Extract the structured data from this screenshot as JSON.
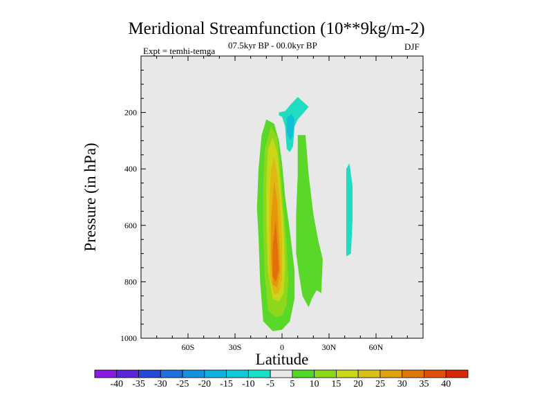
{
  "chart_data": {
    "type": "filled-contour",
    "title": "Meridional Streamfunction (10**9kg/m-2)",
    "subtitle_left": "Expt = temhi-temga",
    "subtitle_center": "07.5kyr BP - 00.0kyr BP",
    "subtitle_right": "DJF",
    "xlabel": "Latitude",
    "ylabel": "Pressure (in hPa)",
    "xlim": [
      -90,
      90
    ],
    "ylim": [
      1000,
      0
    ],
    "x_ticks": [
      -60,
      -30,
      0,
      30,
      60
    ],
    "x_tick_labels": [
      "60S",
      "30S",
      "0",
      "30N",
      "60N"
    ],
    "y_ticks": [
      200,
      400,
      600,
      800,
      1000
    ],
    "y_tick_labels": [
      "200",
      "400",
      "600",
      "800",
      "1000"
    ],
    "colorbar": {
      "labels": [
        "-40",
        "-35",
        "-30",
        "-25",
        "-20",
        "-15",
        "-10",
        "-5",
        "5",
        "10",
        "15",
        "20",
        "25",
        "30",
        "35",
        "40"
      ],
      "colors": [
        "#8a1ce0",
        "#5a28d8",
        "#2848d8",
        "#2070dc",
        "#1890e0",
        "#10b0e0",
        "#10c8d8",
        "#18e0c8",
        "#e8e8e8",
        "#50d828",
        "#8ad818",
        "#c8d818",
        "#d8c018",
        "#e0a010",
        "#e07808",
        "#e05008",
        "#d82808"
      ]
    },
    "regions": [
      {
        "name": "positive cell 5-10",
        "level": 5,
        "color": "#5ad82a",
        "points": [
          [
            -10,
            225
          ],
          [
            -5,
            240
          ],
          [
            -2,
            300
          ],
          [
            0,
            380
          ],
          [
            2,
            500
          ],
          [
            5,
            620
          ],
          [
            8,
            760
          ],
          [
            8,
            860
          ],
          [
            5,
            940
          ],
          [
            0,
            970
          ],
          [
            -6,
            975
          ],
          [
            -12,
            940
          ],
          [
            -14,
            800
          ],
          [
            -15,
            640
          ],
          [
            -16,
            540
          ],
          [
            -15,
            400
          ],
          [
            -13,
            280
          ]
        ]
      },
      {
        "name": "positive cell 10-15",
        "level": 10,
        "color": "#8ed81c",
        "points": [
          [
            -7,
            250
          ],
          [
            -3,
            290
          ],
          [
            -1,
            400
          ],
          [
            1,
            540
          ],
          [
            3,
            680
          ],
          [
            4,
            800
          ],
          [
            3,
            880
          ],
          [
            0,
            920
          ],
          [
            -4,
            925
          ],
          [
            -9,
            900
          ],
          [
            -11,
            780
          ],
          [
            -12,
            620
          ],
          [
            -12,
            460
          ],
          [
            -11,
            330
          ]
        ]
      },
      {
        "name": "positive cell 15-20",
        "level": 15,
        "color": "#c8d818",
        "points": [
          [
            -6,
            290
          ],
          [
            -3,
            340
          ],
          [
            -1,
            460
          ],
          [
            1,
            600
          ],
          [
            2,
            740
          ],
          [
            1,
            840
          ],
          [
            -2,
            870
          ],
          [
            -6,
            860
          ],
          [
            -9,
            760
          ],
          [
            -10,
            600
          ],
          [
            -10,
            450
          ],
          [
            -9,
            330
          ]
        ]
      },
      {
        "name": "positive cell 20-25",
        "level": 20,
        "color": "#e0b814",
        "points": [
          [
            -5,
            360
          ],
          [
            -3,
            420
          ],
          [
            -1,
            540
          ],
          [
            0,
            660
          ],
          [
            0,
            790
          ],
          [
            -2,
            840
          ],
          [
            -5,
            845
          ],
          [
            -8,
            780
          ],
          [
            -8,
            640
          ],
          [
            -8,
            500
          ],
          [
            -7,
            400
          ]
        ]
      },
      {
        "name": "positive cell 25-30",
        "level": 25,
        "color": "#e4960c",
        "points": [
          [
            -5,
            440
          ],
          [
            -3,
            520
          ],
          [
            -2,
            640
          ],
          [
            -1,
            760
          ],
          [
            -3,
            820
          ],
          [
            -6,
            810
          ],
          [
            -7,
            720
          ],
          [
            -7,
            580
          ]
        ]
      },
      {
        "name": "positive cell 30-35",
        "level": 30,
        "color": "#e07008",
        "points": [
          [
            -4,
            580
          ],
          [
            -3,
            660
          ],
          [
            -2,
            760
          ],
          [
            -4,
            800
          ],
          [
            -6,
            780
          ],
          [
            -6,
            680
          ]
        ]
      },
      {
        "name": "NH mid cell 5-10",
        "level": 5,
        "color": "#5ad82a",
        "points": [
          [
            10,
            280
          ],
          [
            15,
            280
          ],
          [
            17,
            420
          ],
          [
            20,
            560
          ],
          [
            23,
            650
          ],
          [
            26,
            720
          ],
          [
            25,
            840
          ],
          [
            22,
            830
          ],
          [
            19,
            860
          ],
          [
            17,
            890
          ],
          [
            13,
            850
          ],
          [
            11,
            780
          ],
          [
            9,
            700
          ],
          [
            9,
            560
          ],
          [
            10,
            420
          ]
        ]
      },
      {
        "name": "upper negative cell -5",
        "level": -5,
        "color": "#20dcc0",
        "points": [
          [
            -2,
            200
          ],
          [
            2,
            195
          ],
          [
            5,
            175
          ],
          [
            10,
            145
          ],
          [
            14,
            165
          ],
          [
            17,
            180
          ],
          [
            14,
            200
          ],
          [
            10,
            225
          ],
          [
            8,
            250
          ],
          [
            7,
            320
          ],
          [
            5,
            340
          ],
          [
            3,
            330
          ],
          [
            2,
            250
          ],
          [
            0,
            215
          ],
          [
            -2,
            210
          ]
        ]
      },
      {
        "name": "upper negative cell -10",
        "level": -10,
        "color": "#10c0d8",
        "points": [
          [
            3,
            220
          ],
          [
            6,
            205
          ],
          [
            8,
            225
          ],
          [
            7,
            280
          ],
          [
            5,
            300
          ],
          [
            3,
            270
          ]
        ]
      },
      {
        "name": "high-latitude negative cell -5",
        "level": -5,
        "color": "#20dcc0",
        "points": [
          [
            41,
            400
          ],
          [
            43,
            380
          ],
          [
            45,
            460
          ],
          [
            45,
            580
          ],
          [
            44,
            700
          ],
          [
            41,
            710
          ],
          [
            41,
            560
          ]
        ]
      }
    ]
  }
}
